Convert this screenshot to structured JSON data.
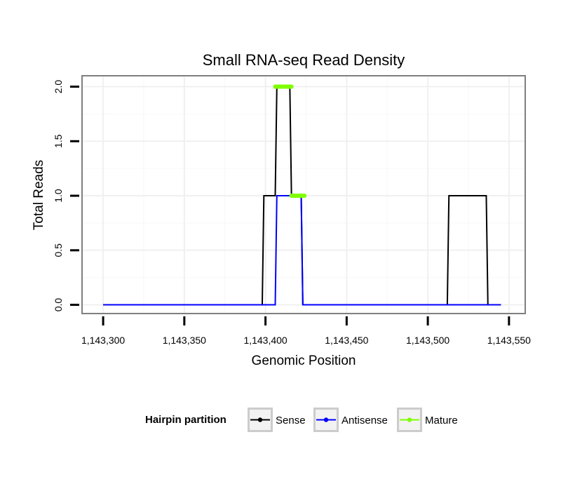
{
  "chart_data": {
    "type": "line",
    "title": "Small RNA-seq Read Density",
    "xlabel": "Genomic Position",
    "ylabel": "Total Reads",
    "xlim": [
      1143287,
      1143560
    ],
    "ylim": [
      -0.08,
      2.1
    ],
    "x_ticks": [
      1143300,
      1143350,
      1143400,
      1143450,
      1143500,
      1143550
    ],
    "x_tick_labels": [
      "1,143,300",
      "1,143,350",
      "1,143,400",
      "1,143,450",
      "1,143,500",
      "1,143,550"
    ],
    "y_ticks": [
      0,
      0.5,
      1,
      1.5,
      2
    ],
    "y_tick_labels": [
      "0.0",
      "0.5",
      "1.0",
      "1.5",
      "2.0"
    ],
    "grid": true,
    "legend": {
      "title": "Hairpin partition",
      "position": "bottom",
      "entries": [
        "Sense",
        "Antisense",
        "Mature"
      ]
    },
    "series": [
      {
        "name": "Sense",
        "color": "#000000",
        "x": [
          1143300,
          1143398,
          1143399,
          1143406,
          1143407,
          1143415,
          1143416,
          1143422,
          1143423,
          1143512,
          1143513,
          1143536,
          1143537,
          1143545
        ],
        "y": [
          0,
          0,
          1,
          1,
          2,
          2,
          1,
          1,
          0,
          0,
          1,
          1,
          0,
          0
        ]
      },
      {
        "name": "Antisense",
        "color": "#0000ff",
        "x": [
          1143300,
          1143406,
          1143407,
          1143422,
          1143423,
          1143545
        ],
        "y": [
          0,
          0,
          1,
          1,
          0,
          0
        ]
      },
      {
        "name": "Mature",
        "color": "#7fff00",
        "segments": [
          {
            "x": [
              1143406,
              1143416
            ],
            "y": [
              2,
              2
            ]
          },
          {
            "x": [
              1143416,
              1143424
            ],
            "y": [
              1,
              1
            ]
          }
        ]
      }
    ]
  }
}
